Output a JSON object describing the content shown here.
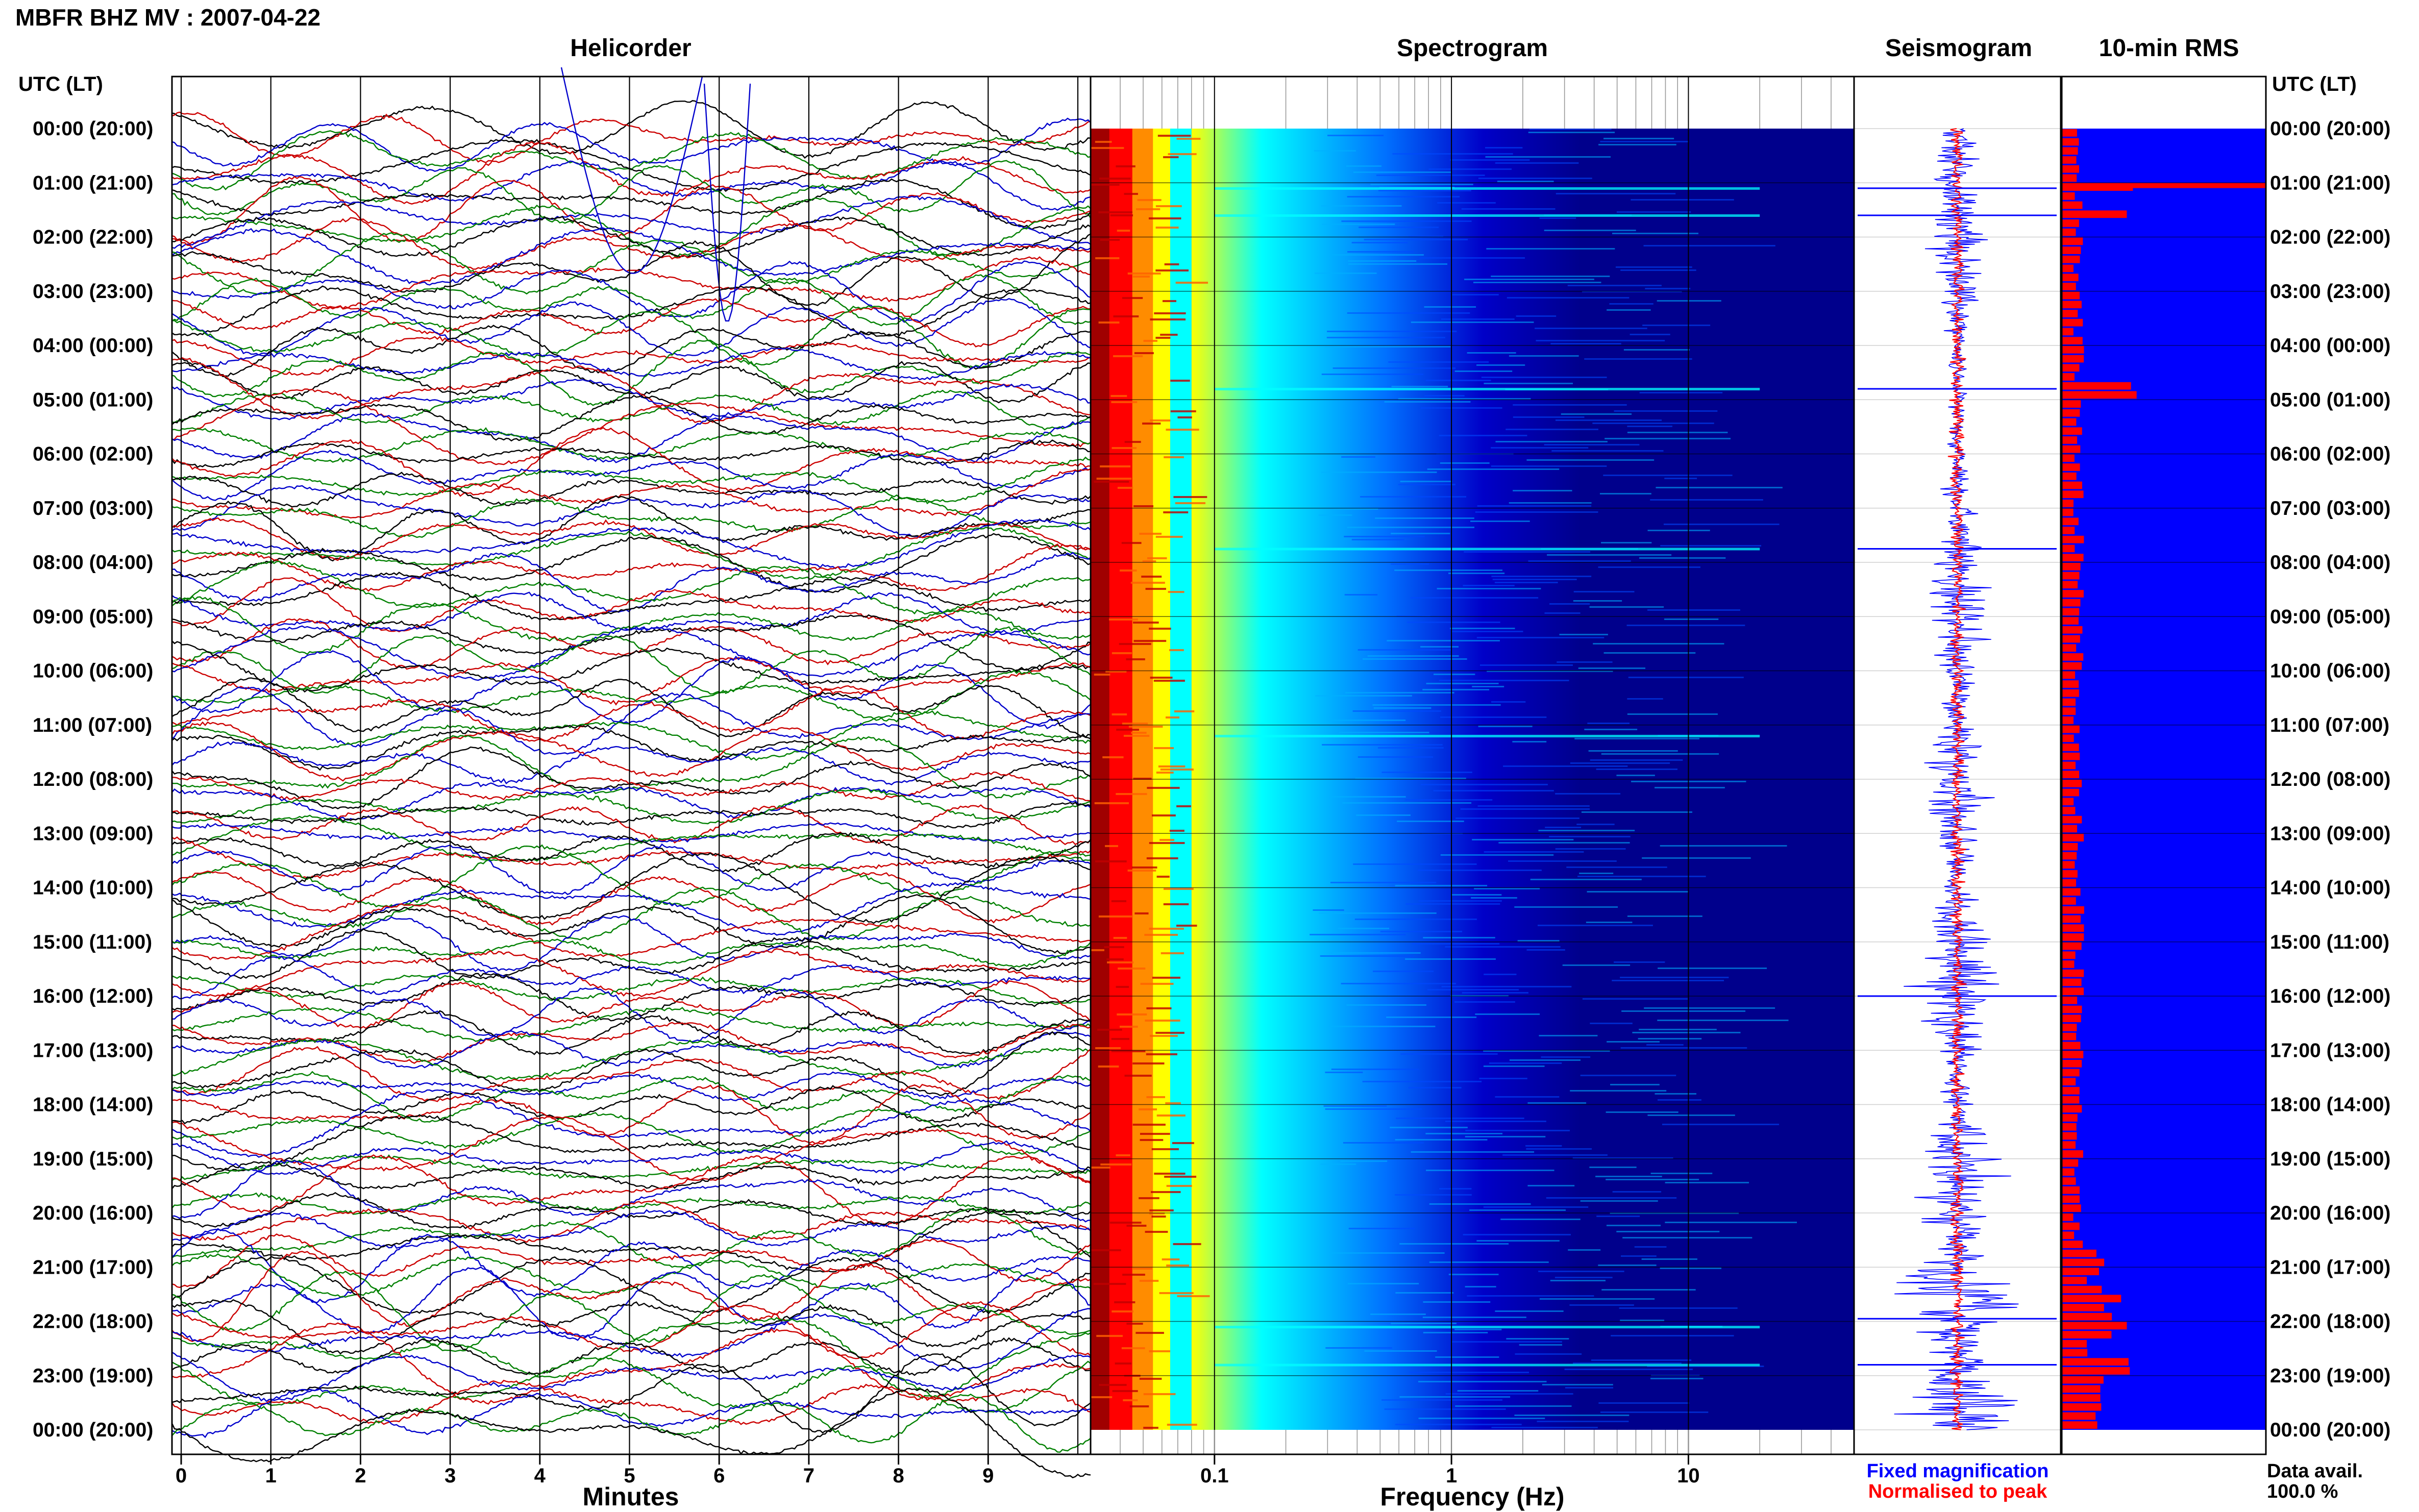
{
  "header": {
    "station_title": "MBFR BHZ MV : 2007-04-22"
  },
  "chart_data": [
    {
      "type": "line",
      "panel": "helicorder",
      "title": "Helicorder",
      "xlabel": "Minutes",
      "x_ticks": [
        0,
        1,
        2,
        3,
        4,
        5,
        6,
        7,
        8,
        9
      ],
      "xlim": [
        0,
        10
      ],
      "trace_colors": [
        "#000000",
        "#cc0000",
        "#0000cc",
        "#008000"
      ],
      "rows_per_hour": 6,
      "grid": true
    },
    {
      "type": "heatmap",
      "panel": "spectrogram",
      "title": "Spectrogram",
      "xlabel": "Frequency (Hz)",
      "x_scale": "log",
      "xlim": [
        0.03,
        50
      ],
      "x_ticks": [
        {
          "value": 0.1,
          "label": "0.1"
        },
        {
          "value": 1,
          "label": "1"
        },
        {
          "value": 10,
          "label": "10"
        }
      ],
      "colormap": [
        "#a00000",
        "#ff0000",
        "#ff8c00",
        "#ffff00",
        "#00ffff",
        "#0070ff",
        "#0000c8",
        "#00008c"
      ],
      "event_hours": [
        1.1,
        1.6,
        4.8,
        7.75,
        11.2,
        22.1,
        22.8
      ]
    },
    {
      "type": "line",
      "panel": "seismogram",
      "title": "Seismogram",
      "legend": [
        {
          "label": "Fixed magnification",
          "color": "#0000ff"
        },
        {
          "label": "Normalised to peak",
          "color": "#ff0000"
        }
      ],
      "event_hours": [
        1.1,
        1.6,
        4.8,
        7.75,
        16.0,
        21.95,
        22.8
      ]
    },
    {
      "type": "bar",
      "panel": "rms",
      "title": "10-min RMS",
      "orientation": "horizontal",
      "bar_color": "#ff0000",
      "background_color": "#0000ff",
      "peak_hours": [
        1.0,
        1.5,
        4.75,
        21.5,
        22.0,
        22.75
      ],
      "footer_label": "Data avail.",
      "footer_value": "100.0 %"
    }
  ],
  "time_axis": {
    "left_header": "UTC (LT)",
    "right_header": "UTC (LT)",
    "labels": [
      "00:00 (20:00)",
      "01:00 (21:00)",
      "02:00 (22:00)",
      "03:00 (23:00)",
      "04:00 (00:00)",
      "05:00 (01:00)",
      "06:00 (02:00)",
      "07:00 (03:00)",
      "08:00 (04:00)",
      "09:00 (05:00)",
      "10:00 (06:00)",
      "11:00 (07:00)",
      "12:00 (08:00)",
      "13:00 (09:00)",
      "14:00 (10:00)",
      "15:00 (11:00)",
      "16:00 (12:00)",
      "17:00 (13:00)",
      "18:00 (14:00)",
      "19:00 (15:00)",
      "20:00 (16:00)",
      "21:00 (17:00)",
      "22:00 (18:00)",
      "23:00 (19:00)",
      "00:00 (20:00)"
    ]
  }
}
